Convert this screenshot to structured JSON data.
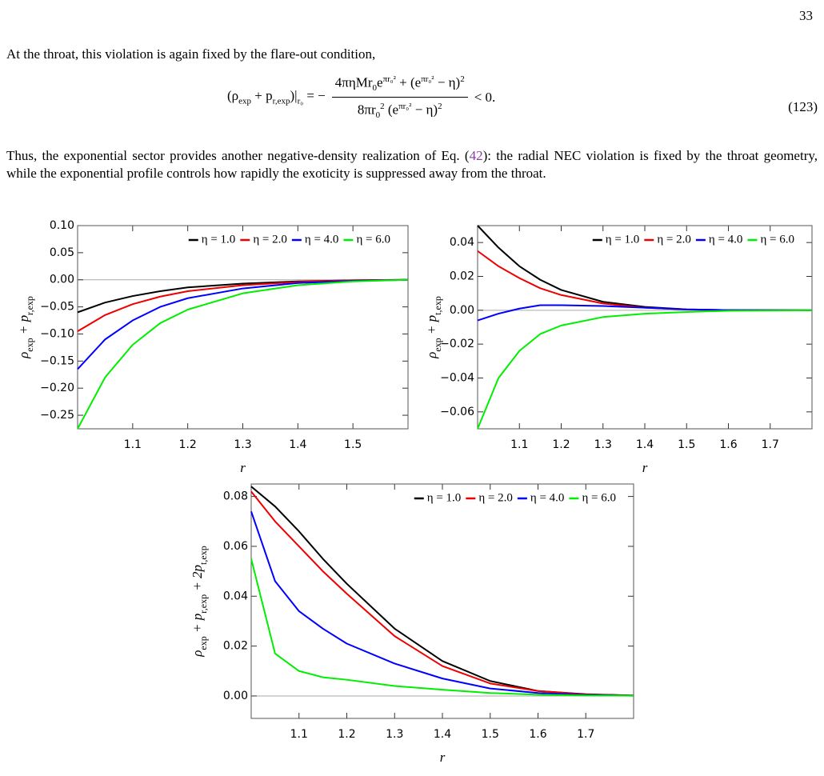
{
  "page_number": "33",
  "paragraph1": "At the throat, this violation is again fixed by the flare-out condition,",
  "equation": {
    "lhs": [
      {
        "t": "(ρ"
      },
      {
        "t": "exp",
        "s": "sub"
      },
      {
        "t": " + p"
      },
      {
        "t": "r,exp",
        "s": "sub"
      },
      {
        "t": ")|"
      },
      {
        "t": "r₀",
        "s": "sub"
      },
      {
        "t": " = −"
      }
    ],
    "numerator": [
      {
        "t": "4πηMr"
      },
      {
        "t": "0",
        "s": "sub"
      },
      {
        "t": "e"
      },
      {
        "t": "πr₀²",
        "s": "sup"
      },
      {
        "t": " + (e"
      },
      {
        "t": "πr₀²",
        "s": "sup"
      },
      {
        "t": " − η)"
      },
      {
        "t": "2",
        "s": "sup"
      }
    ],
    "denominator": [
      {
        "t": "8πr"
      },
      {
        "t": "0",
        "s": "sub"
      },
      {
        "t": "2",
        "s": "sup"
      },
      {
        "t": " (e"
      },
      {
        "t": "πr₀²",
        "s": "sup"
      },
      {
        "t": " − η)"
      },
      {
        "t": "2",
        "s": "sup"
      }
    ],
    "rhs": "< 0.",
    "number": "(123)"
  },
  "paragraph2": {
    "before": "Thus, the exponential sector provides another negative-density realization of Eq. (",
    "ref": "42",
    "after": "): the radial NEC violation is fixed by the throat geometry, while the exponential profile controls how rapidly the exoticity is suppressed away from the throat."
  },
  "chart_data": [
    {
      "type": "line",
      "xlabel": "r",
      "ylabel": [
        {
          "t": "ρ"
        },
        {
          "t": "exp",
          "s": "sub"
        },
        {
          "t": " + p"
        },
        {
          "t": "r,exp",
          "s": "sub"
        }
      ],
      "x": [
        1.0,
        1.05,
        1.1,
        1.15,
        1.2,
        1.3,
        1.4,
        1.5,
        1.6
      ],
      "series": [
        {
          "name": "η = 1.0",
          "color": "#000000",
          "values": [
            -0.06,
            -0.042,
            -0.03,
            -0.021,
            -0.014,
            -0.007,
            -0.003,
            -0.001,
            0
          ]
        },
        {
          "name": "η = 2.0",
          "color": "#ee0000",
          "values": [
            -0.095,
            -0.065,
            -0.045,
            -0.031,
            -0.021,
            -0.01,
            -0.004,
            -0.001,
            0
          ]
        },
        {
          "name": "η = 4.0",
          "color": "#0000ff",
          "values": [
            -0.165,
            -0.11,
            -0.075,
            -0.05,
            -0.034,
            -0.016,
            -0.006,
            -0.002,
            0
          ]
        },
        {
          "name": "η = 6.0",
          "color": "#00ee00",
          "values": [
            -0.275,
            -0.18,
            -0.12,
            -0.08,
            -0.055,
            -0.025,
            -0.01,
            -0.003,
            0
          ]
        }
      ],
      "xlim": [
        1.0,
        1.6
      ],
      "xticks": [
        1.1,
        1.2,
        1.3,
        1.4,
        1.5
      ],
      "ylim": [
        -0.275,
        0.1
      ],
      "yticks": [
        {
          "value": 0.1,
          "label": "0.10"
        },
        {
          "value": 0.05,
          "label": "0.05"
        },
        {
          "value": 0,
          "label": "0.00"
        },
        {
          "value": -0.05,
          "label": "−0.05"
        },
        {
          "value": -0.1,
          "label": "−0.10"
        },
        {
          "value": -0.15,
          "label": "−0.15"
        },
        {
          "value": -0.2,
          "label": "−0.20"
        },
        {
          "value": -0.25,
          "label": "−0.25"
        }
      ],
      "zero_line": true,
      "legend": "top-right"
    },
    {
      "type": "line",
      "xlabel": "r",
      "ylabel": [
        {
          "t": "ρ"
        },
        {
          "t": "exp",
          "s": "sub"
        },
        {
          "t": " + p"
        },
        {
          "t": "t,exp",
          "s": "sub"
        }
      ],
      "x": [
        1.0,
        1.05,
        1.1,
        1.15,
        1.2,
        1.3,
        1.4,
        1.5,
        1.6,
        1.8
      ],
      "series": [
        {
          "name": "η = 1.0",
          "color": "#000000",
          "values": [
            0.05,
            0.037,
            0.026,
            0.018,
            0.012,
            0.005,
            0.002,
            0.0005,
            0.0001,
            0
          ]
        },
        {
          "name": "η = 2.0",
          "color": "#ee0000",
          "values": [
            0.035,
            0.026,
            0.019,
            0.013,
            0.009,
            0.004,
            0.0015,
            0.0004,
            0.0001,
            0
          ]
        },
        {
          "name": "η = 4.0",
          "color": "#0000ff",
          "values": [
            -0.006,
            -0.002,
            0.001,
            0.003,
            0.003,
            0.0025,
            0.0015,
            0.0005,
            0.0001,
            0
          ]
        },
        {
          "name": "η = 6.0",
          "color": "#00ee00",
          "values": [
            -0.07,
            -0.04,
            -0.024,
            -0.014,
            -0.009,
            -0.004,
            -0.002,
            -0.001,
            -0.0003,
            0
          ]
        }
      ],
      "xlim": [
        1.0,
        1.8
      ],
      "xticks": [
        1.1,
        1.2,
        1.3,
        1.4,
        1.5,
        1.6,
        1.7
      ],
      "ylim": [
        -0.07,
        0.05
      ],
      "yticks": [
        {
          "value": 0.04,
          "label": "0.04"
        },
        {
          "value": 0.02,
          "label": "0.02"
        },
        {
          "value": 0,
          "label": "0.00"
        },
        {
          "value": -0.02,
          "label": "−0.02"
        },
        {
          "value": -0.04,
          "label": "−0.04"
        },
        {
          "value": -0.06,
          "label": "−0.06"
        }
      ],
      "zero_line": true,
      "legend": "top-right"
    },
    {
      "type": "line",
      "xlabel": "r",
      "ylabel": [
        {
          "t": "ρ"
        },
        {
          "t": "exp",
          "s": "sub"
        },
        {
          "t": " + p"
        },
        {
          "t": "r,exp",
          "s": "sub"
        },
        {
          "t": " + 2p"
        },
        {
          "t": "t,exp",
          "s": "sub"
        }
      ],
      "x": [
        1.0,
        1.05,
        1.1,
        1.15,
        1.2,
        1.3,
        1.4,
        1.5,
        1.6,
        1.7,
        1.8
      ],
      "series": [
        {
          "name": "η = 1.0",
          "color": "#000000",
          "values": [
            0.084,
            0.076,
            0.066,
            0.055,
            0.045,
            0.027,
            0.014,
            0.006,
            0.002,
            0.0007,
            0.0002
          ]
        },
        {
          "name": "η = 2.0",
          "color": "#ee0000",
          "values": [
            0.082,
            0.07,
            0.06,
            0.05,
            0.041,
            0.024,
            0.012,
            0.005,
            0.002,
            0.0006,
            0.0002
          ]
        },
        {
          "name": "η = 4.0",
          "color": "#0000ff",
          "values": [
            0.074,
            0.046,
            0.034,
            0.027,
            0.021,
            0.013,
            0.007,
            0.003,
            0.0012,
            0.0004,
            0.0001
          ]
        },
        {
          "name": "η = 6.0",
          "color": "#00ee00",
          "values": [
            0.055,
            0.017,
            0.01,
            0.0075,
            0.0065,
            0.004,
            0.0025,
            0.0012,
            0.0005,
            0.0002,
            0.0001
          ]
        }
      ],
      "xlim": [
        1.0,
        1.8
      ],
      "xticks": [
        1.1,
        1.2,
        1.3,
        1.4,
        1.5,
        1.6,
        1.7
      ],
      "ylim": [
        -0.009,
        0.085
      ],
      "yticks": [
        {
          "value": 0.08,
          "label": "0.08"
        },
        {
          "value": 0.06,
          "label": "0.06"
        },
        {
          "value": 0.04,
          "label": "0.04"
        },
        {
          "value": 0.02,
          "label": "0.02"
        },
        {
          "value": 0,
          "label": "0.00"
        }
      ],
      "zero_line": true,
      "legend": "top-right"
    }
  ]
}
